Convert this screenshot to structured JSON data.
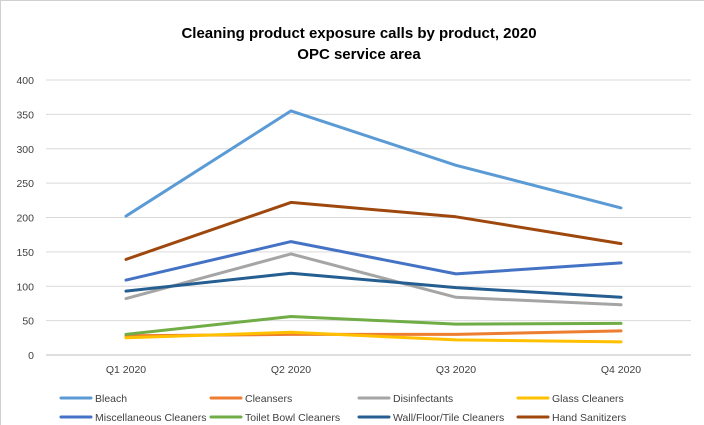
{
  "chart_data": {
    "type": "line",
    "title_line1": "Cleaning product exposure calls by product, 2020",
    "title_line2": "OPC service area",
    "categories": [
      "Q1 2020",
      "Q2 2020",
      "Q3 2020",
      "Q4 2020"
    ],
    "ylim": [
      0,
      400
    ],
    "yticks": [
      0,
      50,
      100,
      150,
      200,
      250,
      300,
      350,
      400
    ],
    "grid": true,
    "legend_position": "bottom",
    "series": [
      {
        "name": "Bleach",
        "color": "#5B9BD5",
        "values": [
          202,
          355,
          276,
          214
        ]
      },
      {
        "name": "Cleansers",
        "color": "#ED7D31",
        "values": [
          28,
          30,
          30,
          35
        ]
      },
      {
        "name": "Disinfectants",
        "color": "#A5A5A5",
        "values": [
          82,
          147,
          84,
          73
        ]
      },
      {
        "name": "Glass Cleaners",
        "color": "#FFC000",
        "values": [
          25,
          33,
          22,
          19
        ]
      },
      {
        "name": "Miscellaneous Cleaners",
        "color": "#4472C4",
        "values": [
          109,
          165,
          118,
          134
        ]
      },
      {
        "name": "Toilet Bowl Cleaners",
        "color": "#70AD47",
        "values": [
          30,
          56,
          45,
          46
        ]
      },
      {
        "name": "Wall/Floor/Tile Cleaners",
        "color": "#255E91",
        "values": [
          93,
          119,
          98,
          84
        ]
      },
      {
        "name": "Hand Sanitizers",
        "color": "#9E480E",
        "values": [
          139,
          222,
          201,
          162
        ]
      }
    ]
  }
}
